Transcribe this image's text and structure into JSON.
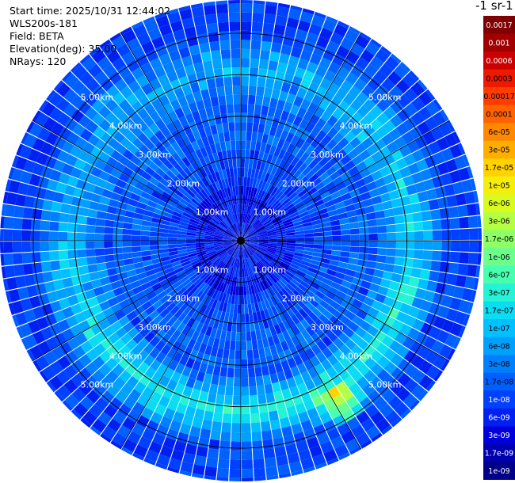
{
  "info": {
    "start_time": "Start time: 2025/10/31 12:44:02",
    "instrument": "WLS200s-181",
    "field": "Field: BETA",
    "elevation": "Elevation(deg): 35.00",
    "nrays": "NRays: 120"
  },
  "colorbar_title": "-1 sr-1",
  "colors": {
    "background": "#ffffff",
    "range_ring": "#000000",
    "spoke": "#ffffff",
    "ring_label": "#ffffff"
  },
  "chart_data": {
    "type": "heatmap",
    "subtype": "polar PPI scan",
    "field": "BETA",
    "n_rays": 120,
    "max_range_km": 5.8,
    "range_ring_labels_km": [
      "1.00km",
      "2.00km",
      "3.00km",
      "4.00km",
      "5.00km"
    ],
    "range_rings_km": [
      1,
      2,
      3,
      4,
      5
    ],
    "spoke_angles_deg": [
      0,
      30,
      60,
      90,
      120,
      150
    ],
    "colorbar": {
      "scale": "log",
      "ticks": [
        "0.0017",
        "0.001",
        "0.0006",
        "0.0003",
        "0.00017",
        "0.0001",
        "6e-05",
        "3e-05",
        "1.7e-05",
        "1e-05",
        "6e-06",
        "3e-06",
        "1.7e-06",
        "1e-06",
        "6e-07",
        "3e-07",
        "1.7e-07",
        "1e-07",
        "6e-08",
        "3e-08",
        "1.7e-08",
        "1e-08",
        "6e-09",
        "3e-09",
        "1.7e-09",
        "1e-09"
      ],
      "colors": [
        "#7f0000",
        "#a00000",
        "#cc0000",
        "#ee1a00",
        "#ff3d00",
        "#ff6200",
        "#ff8800",
        "#ffae00",
        "#ffd200",
        "#f5ee0c",
        "#d8fa1f",
        "#b4ff44",
        "#8fff68",
        "#6cff8c",
        "#48ffaf",
        "#26f2d6",
        "#0adcf2",
        "#00c0ff",
        "#00a0ff",
        "#0080ff",
        "#0060ff",
        "#0040ff",
        "#0020f0",
        "#0000dc",
        "#0000b0",
        "#000088"
      ]
    },
    "field_structure": {
      "bright_ring_km": [
        3.3,
        4.9
      ],
      "hotspot_azimuth_deg": 147,
      "hotspot_range_km": 4.6
    }
  }
}
